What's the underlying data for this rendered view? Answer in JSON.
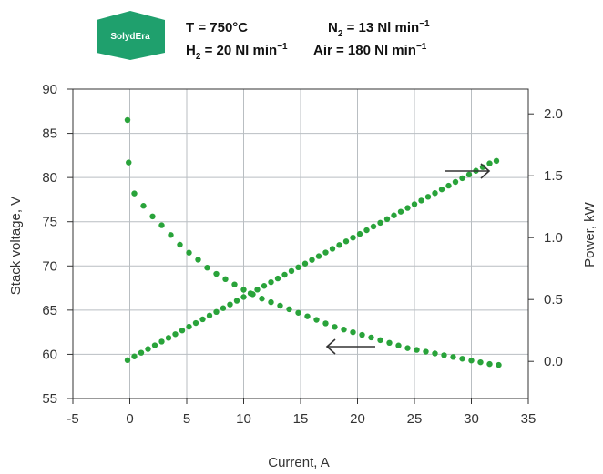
{
  "brand": {
    "logo_text": "SolydEra"
  },
  "conditions": {
    "temperature": "T = 750°C",
    "h2": {
      "prefix": "H",
      "sub": "2",
      "suffix": " = 20 Nl min",
      "sup": "−1"
    },
    "n2": {
      "prefix": "N",
      "sub": "2",
      "suffix": " = 13 Nl min",
      "sup": "−1"
    },
    "air": {
      "prefix": "Air = 180 Nl min",
      "sup": "−1"
    }
  },
  "colors": {
    "series": "#29a33a",
    "grid": "#b9bec2",
    "frame": "#333333",
    "arrow": "#333333"
  },
  "chart_data": {
    "type": "scatter",
    "xlabel": "Current, A",
    "ylabel": "Stack voltage, V",
    "y2label": "Power, kW",
    "xlim": [
      -5,
      35
    ],
    "ylim": [
      55,
      90
    ],
    "y2lim": [
      -0.3,
      2.2
    ],
    "x_ticks": [
      "-5",
      "0",
      "5",
      "10",
      "15",
      "20",
      "25",
      "30",
      "35"
    ],
    "y_ticks": [
      "55",
      "60",
      "65",
      "70",
      "75",
      "80",
      "85",
      "90"
    ],
    "y2_ticks": [
      "0.0",
      "0.5",
      "1.0",
      "1.5",
      "2.0"
    ],
    "grid": true,
    "series": [
      {
        "axis": "left",
        "x": [
          -0.2,
          -0.1,
          0.4,
          1.2,
          2.0,
          2.8,
          3.6,
          4.4,
          5.2,
          6.0,
          6.8,
          7.6,
          8.4,
          9.2,
          10.0,
          10.8,
          11.6,
          12.4,
          13.2,
          14.0,
          14.8,
          15.6,
          16.4,
          17.2,
          18.0,
          18.8,
          19.6,
          20.4,
          21.2,
          22.0,
          22.8,
          23.6,
          24.4,
          25.2,
          26.0,
          26.8,
          27.6,
          28.4,
          29.2,
          30.0,
          30.8,
          31.6,
          32.4
        ],
        "y": [
          86.5,
          81.7,
          78.2,
          76.8,
          75.6,
          74.6,
          73.5,
          72.4,
          71.5,
          70.7,
          69.8,
          69.1,
          68.5,
          67.9,
          67.3,
          66.8,
          66.3,
          65.9,
          65.5,
          65.1,
          64.7,
          64.3,
          63.9,
          63.5,
          63.1,
          62.8,
          62.5,
          62.2,
          61.9,
          61.6,
          61.3,
          61.0,
          60.7,
          60.5,
          60.3,
          60.1,
          59.9,
          59.7,
          59.5,
          59.3,
          59.1,
          58.9,
          58.8
        ]
      },
      {
        "axis": "right",
        "x": [
          -0.2,
          0.4,
          1.0,
          1.6,
          2.2,
          2.8,
          3.4,
          4.0,
          4.6,
          5.2,
          5.8,
          6.4,
          7.0,
          7.6,
          8.2,
          8.8,
          9.4,
          10.0,
          10.6,
          11.2,
          11.8,
          12.4,
          13.0,
          13.6,
          14.2,
          14.8,
          15.4,
          16.0,
          16.6,
          17.2,
          17.8,
          18.4,
          19.0,
          19.6,
          20.2,
          20.8,
          21.4,
          22.0,
          22.6,
          23.2,
          23.8,
          24.4,
          25.0,
          25.6,
          26.2,
          26.8,
          27.4,
          28.0,
          28.6,
          29.2,
          29.8,
          30.4,
          31.0,
          31.6,
          32.2
        ],
        "y": [
          0.01,
          0.04,
          0.07,
          0.1,
          0.13,
          0.16,
          0.19,
          0.22,
          0.25,
          0.28,
          0.31,
          0.34,
          0.37,
          0.4,
          0.43,
          0.46,
          0.49,
          0.52,
          0.55,
          0.58,
          0.61,
          0.64,
          0.67,
          0.7,
          0.73,
          0.76,
          0.79,
          0.82,
          0.85,
          0.88,
          0.91,
          0.94,
          0.97,
          1.0,
          1.03,
          1.06,
          1.09,
          1.12,
          1.15,
          1.18,
          1.21,
          1.24,
          1.27,
          1.3,
          1.33,
          1.36,
          1.39,
          1.42,
          1.45,
          1.48,
          1.51,
          1.54,
          1.57,
          1.6,
          1.62
        ]
      }
    ]
  }
}
